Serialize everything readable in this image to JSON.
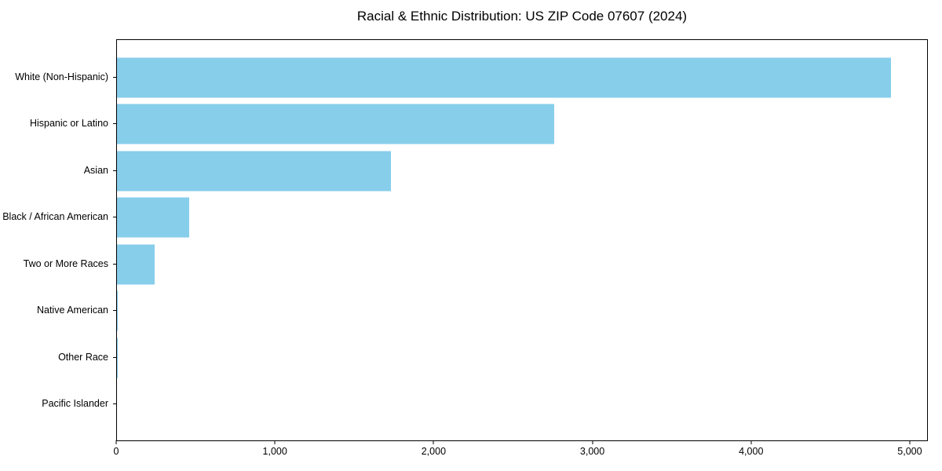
{
  "title": "Racial & Ethnic Distribution: US ZIP Code 07607 (2024)",
  "colors": {
    "bar": "#87CEEB",
    "axis": "#000000",
    "text": "#000000",
    "background": "#FFFFFF"
  },
  "chart_data": {
    "type": "bar",
    "orientation": "horizontal",
    "title": "Racial & Ethnic Distribution: US ZIP Code 07607 (2024)",
    "categories": [
      "White (Non-Hispanic)",
      "Hispanic or Latino",
      "Asian",
      "Black / African American",
      "Two or More Races",
      "Native American",
      "Other Race",
      "Pacific Islander"
    ],
    "values": [
      4885,
      2760,
      1730,
      455,
      240,
      5,
      4,
      0
    ],
    "xlabel": "",
    "ylabel": "",
    "xlim": [
      0,
      5114
    ],
    "x_ticks": [
      0,
      1000,
      2000,
      3000,
      4000,
      5000
    ],
    "x_tick_labels": [
      "0",
      "1,000",
      "2,000",
      "3,000",
      "4,000",
      "5,000"
    ],
    "bar_color": "#87CEEB",
    "grid": false,
    "legend": null
  }
}
